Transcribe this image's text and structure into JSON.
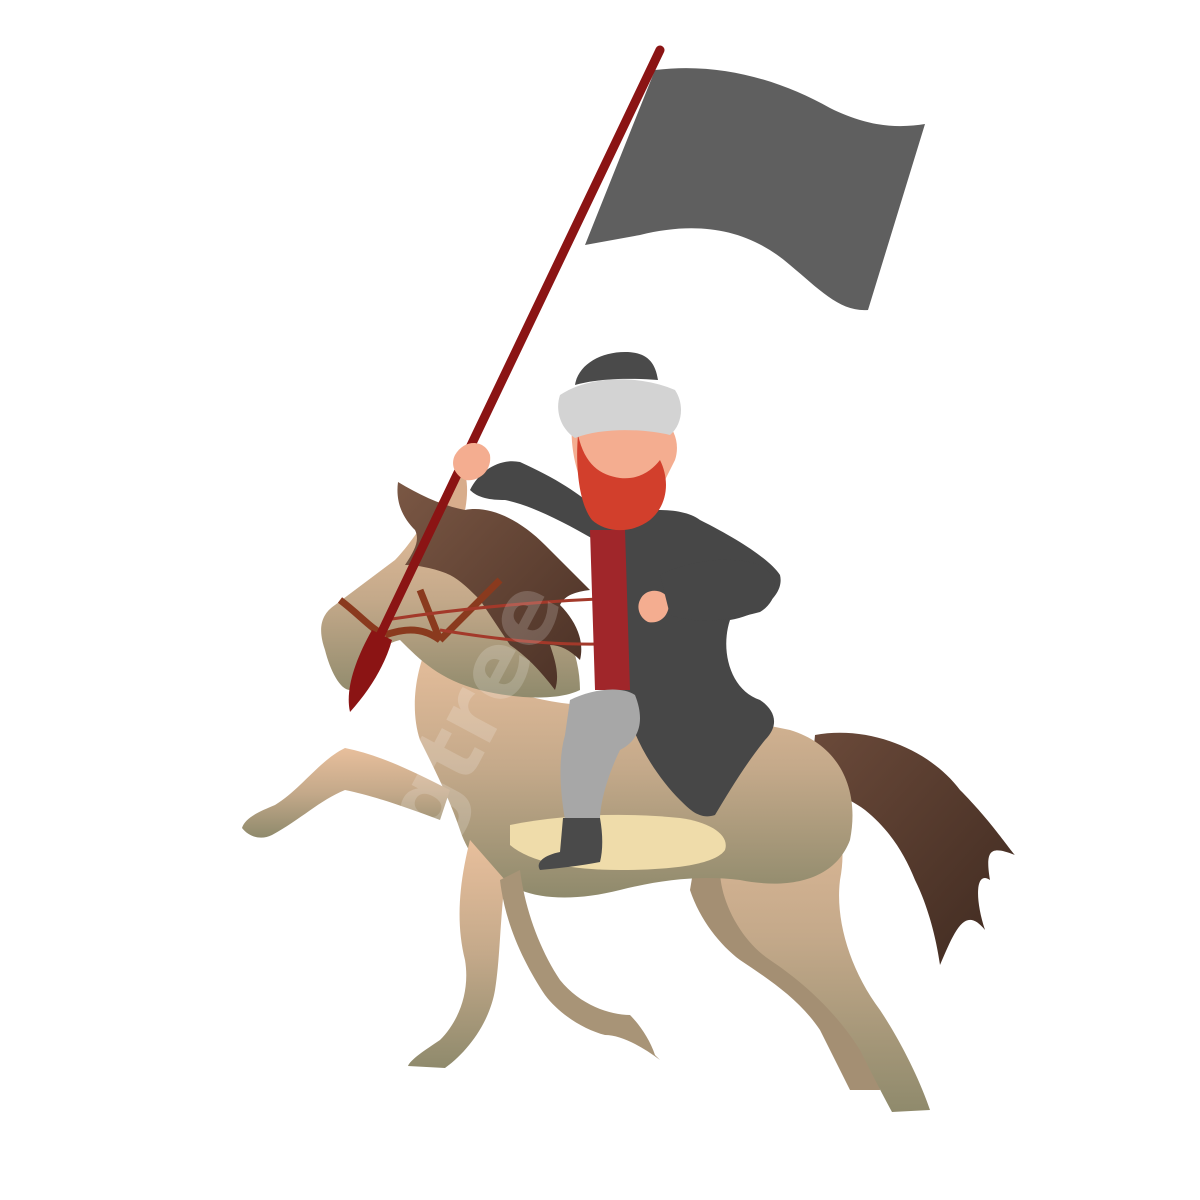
{
  "watermark": "pngtree"
}
